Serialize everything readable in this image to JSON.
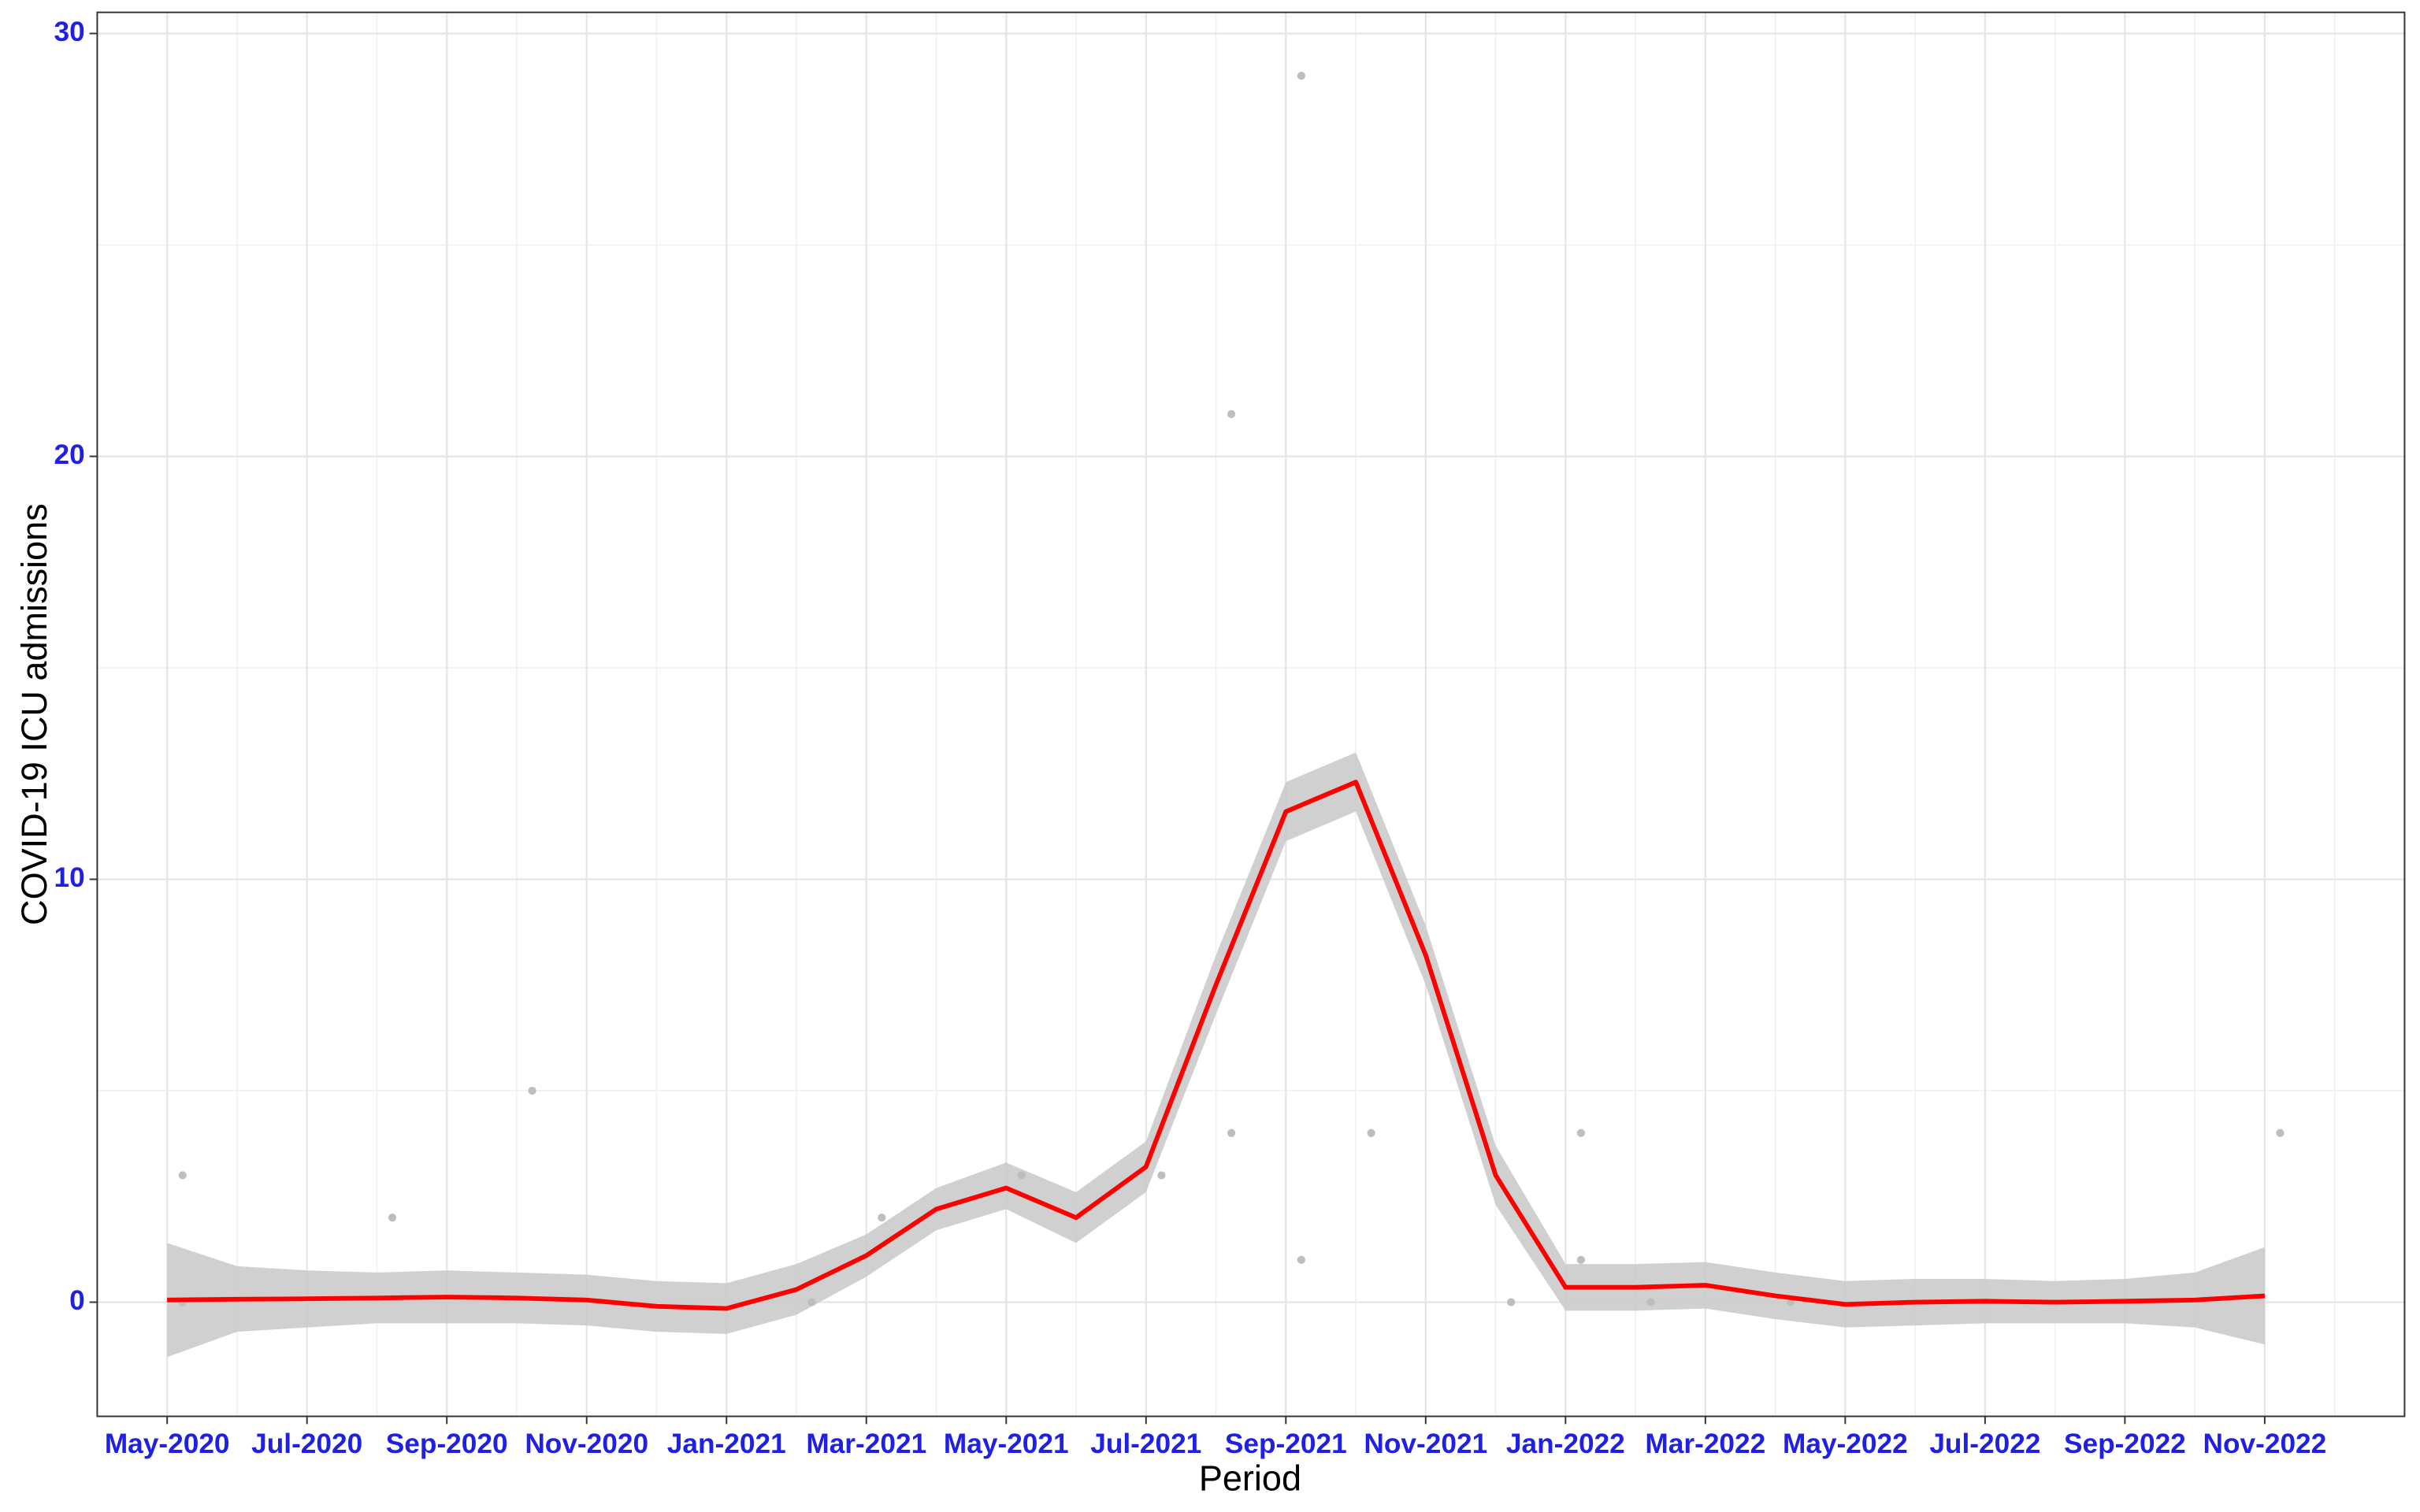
{
  "chart_data": {
    "type": "line",
    "x_label": "Period",
    "y_label": "COVID-19 ICU admissions",
    "xlim": [
      "2020-04",
      "2023-01"
    ],
    "xticks": [
      {
        "value": "2020-05",
        "label": "May-2020"
      },
      {
        "value": "2020-07",
        "label": "Jul-2020"
      },
      {
        "value": "2020-09",
        "label": "Sep-2020"
      },
      {
        "value": "2020-11",
        "label": "Nov-2020"
      },
      {
        "value": "2021-01",
        "label": "Jan-2021"
      },
      {
        "value": "2021-03",
        "label": "Mar-2021"
      },
      {
        "value": "2021-05",
        "label": "May-2021"
      },
      {
        "value": "2021-07",
        "label": "Jul-2021"
      },
      {
        "value": "2021-09",
        "label": "Sep-2021"
      },
      {
        "value": "2021-11",
        "label": "Nov-2021"
      },
      {
        "value": "2022-01",
        "label": "Jan-2022"
      },
      {
        "value": "2022-03",
        "label": "Mar-2022"
      },
      {
        "value": "2022-05",
        "label": "May-2022"
      },
      {
        "value": "2022-07",
        "label": "Jul-2022"
      },
      {
        "value": "2022-09",
        "label": "Sep-2022"
      },
      {
        "value": "2022-11",
        "label": "Nov-2022"
      }
    ],
    "ylim": [
      -2.7,
      30.5
    ],
    "yticks": [
      0,
      10,
      20,
      30
    ],
    "y_minor_grid": [
      5,
      15,
      25
    ],
    "grid": true,
    "points": {
      "color": "#bebebe",
      "x": [
        "2020-05",
        "2020-05",
        "2020-08",
        "2020-10",
        "2021-02",
        "2021-03",
        "2021-05",
        "2021-07",
        "2021-08",
        "2021-08",
        "2021-09",
        "2021-09",
        "2021-10",
        "2021-12",
        "2022-01",
        "2022-01",
        "2022-02",
        "2022-04",
        "2022-11"
      ],
      "values": [
        3,
        0,
        2,
        5,
        0,
        2,
        3,
        3,
        4,
        21,
        1,
        29,
        4,
        0,
        1,
        4,
        0,
        0,
        4
      ]
    },
    "fit": {
      "color": "#ff0000",
      "band_color": "#c8c8c8",
      "x": [
        "2020-05",
        "2020-06",
        "2020-07",
        "2020-08",
        "2020-09",
        "2020-10",
        "2020-11",
        "2020-12",
        "2021-01",
        "2021-02",
        "2021-03",
        "2021-04",
        "2021-05",
        "2021-06",
        "2021-07",
        "2021-08",
        "2021-09",
        "2021-10",
        "2021-11",
        "2021-12",
        "2022-01",
        "2022-02",
        "2022-03",
        "2022-04",
        "2022-05",
        "2022-06",
        "2022-07",
        "2022-08",
        "2022-09",
        "2022-10",
        "2022-11"
      ],
      "values": [
        0.05,
        0.07,
        0.08,
        0.1,
        0.12,
        0.1,
        0.05,
        -0.1,
        -0.15,
        0.3,
        1.1,
        2.2,
        2.7,
        2.0,
        3.2,
        7.5,
        11.6,
        12.3,
        8.2,
        3.0,
        0.35,
        0.35,
        0.4,
        0.15,
        -0.05,
        0,
        0.02,
        0,
        0.02,
        0.05,
        0.15
      ],
      "lower": [
        -1.3,
        -0.7,
        -0.6,
        -0.5,
        -0.5,
        -0.5,
        -0.55,
        -0.7,
        -0.75,
        -0.3,
        0.6,
        1.7,
        2.2,
        1.4,
        2.6,
        6.8,
        10.9,
        11.6,
        7.5,
        2.3,
        -0.2,
        -0.2,
        -0.15,
        -0.4,
        -0.6,
        -0.55,
        -0.5,
        -0.5,
        -0.5,
        -0.6,
        -1.0
      ],
      "upper": [
        1.4,
        0.85,
        0.75,
        0.7,
        0.75,
        0.7,
        0.65,
        0.5,
        0.45,
        0.9,
        1.6,
        2.7,
        3.3,
        2.6,
        3.8,
        8.2,
        12.3,
        13.0,
        8.9,
        3.7,
        0.9,
        0.9,
        0.95,
        0.7,
        0.5,
        0.55,
        0.55,
        0.5,
        0.55,
        0.7,
        1.3
      ]
    }
  }
}
